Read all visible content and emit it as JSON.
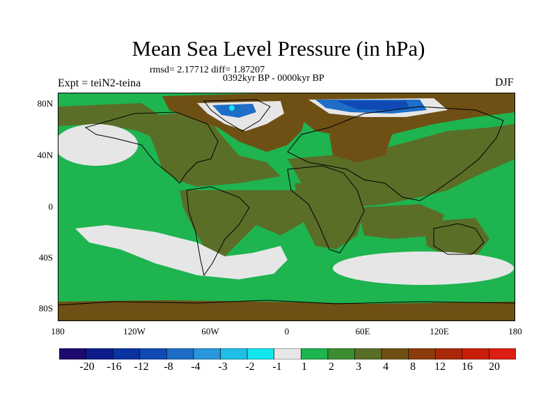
{
  "title": "Mean Sea Level Pressure (in hPa)",
  "stats": "rmsd= 2.17712  diff= 1.87207",
  "period": "0392kyr BP - 0000kyr BP",
  "experiment": "Expt = teiN2-teina",
  "season": "DJF",
  "lat_labels": [
    "80N",
    "40N",
    "0",
    "40S",
    "80S"
  ],
  "lon_labels": [
    "180",
    "120W",
    "60W",
    "0",
    "60E",
    "120E",
    "180"
  ],
  "colorbar": {
    "labels": [
      "-20",
      "-16",
      "-12",
      "-8",
      "-4",
      "-3",
      "-2",
      "-1",
      "1",
      "2",
      "3",
      "4",
      "8",
      "12",
      "16",
      "20"
    ],
    "colors": [
      "#1e0a6e",
      "#0d1e8c",
      "#0a32a0",
      "#0f4ab4",
      "#1e6ec8",
      "#2896dc",
      "#1ebee6",
      "#14e6f0",
      "#e6e6e6",
      "#1eb450",
      "#3c8c32",
      "#5a6e28",
      "#6e5014",
      "#8c3c0a",
      "#a82808",
      "#c81e0a",
      "#dc1e14"
    ]
  },
  "palette": {
    "green": "#1eb450",
    "olive": "#5a6e28",
    "dark_olive": "#3c8c32",
    "brown": "#6e5014",
    "light": "#e6e6e6",
    "blue": "#1e6ec8",
    "dark_blue": "#0f4ab4",
    "cyan": "#14e6f0"
  }
}
